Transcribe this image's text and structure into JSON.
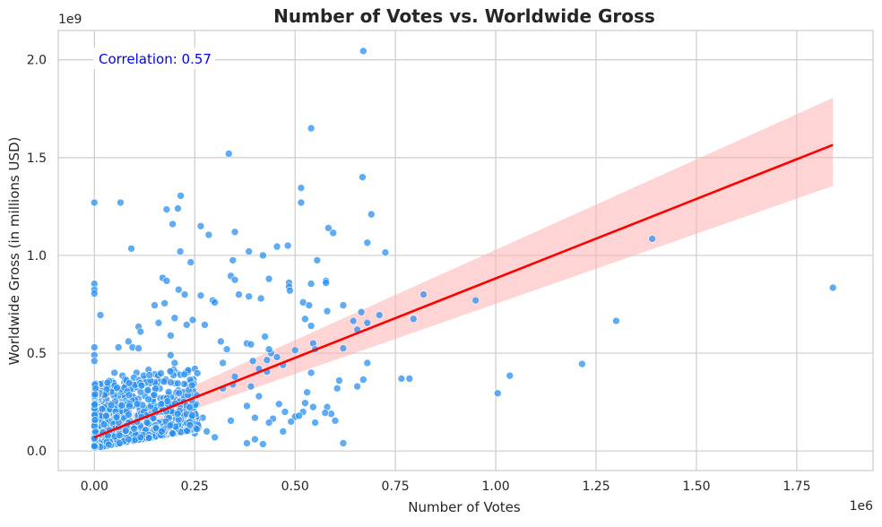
{
  "chart_data": {
    "type": "scatter",
    "title": "Number of Votes vs. Worldwide Gross",
    "xlabel": "Number of Votes",
    "ylabel": "Worldwide Gross (in millions USD)",
    "x_offset_label": "1e6",
    "y_offset_label": "1e9",
    "xlim": [
      -90000,
      1940000
    ],
    "ylim": [
      -100000000,
      2150000000
    ],
    "x_ticks": [
      {
        "value": 0,
        "label": "0.00"
      },
      {
        "value": 250000,
        "label": "0.25"
      },
      {
        "value": 500000,
        "label": "0.50"
      },
      {
        "value": 750000,
        "label": "0.75"
      },
      {
        "value": 1000000,
        "label": "1.00"
      },
      {
        "value": 1250000,
        "label": "1.25"
      },
      {
        "value": 1500000,
        "label": "1.50"
      },
      {
        "value": 1750000,
        "label": "1.75"
      }
    ],
    "y_ticks": [
      {
        "value": 0,
        "label": "0.0"
      },
      {
        "value": 500000000,
        "label": "0.5"
      },
      {
        "value": 1000000000,
        "label": "1.0"
      },
      {
        "value": 1500000000,
        "label": "1.5"
      },
      {
        "value": 2000000000,
        "label": "2.0"
      }
    ],
    "grid": true,
    "annotation": "Correlation: 0.57",
    "regression": {
      "x": [
        0,
        1840000
      ],
      "y": [
        70000000,
        1565000000
      ],
      "ci_upper_end": 1805000000,
      "ci_lower_end": 1355000000,
      "ci_at_zero": [
        35000000,
        105000000
      ]
    },
    "series": [
      {
        "points": [
          [
            670000,
            2045000000
          ],
          [
            540000,
            1650000000
          ],
          [
            335000,
            1520000000
          ],
          [
            668000,
            1400000000
          ],
          [
            515000,
            1345000000
          ],
          [
            0,
            1270000000
          ],
          [
            65000,
            1270000000
          ],
          [
            515000,
            1270000000
          ],
          [
            215000,
            1305000000
          ],
          [
            180000,
            1235000000
          ],
          [
            208000,
            1240000000
          ],
          [
            265000,
            1150000000
          ],
          [
            285000,
            1105000000
          ],
          [
            595000,
            1115000000
          ],
          [
            583000,
            1140000000
          ],
          [
            350000,
            1120000000
          ],
          [
            690000,
            1210000000
          ],
          [
            195000,
            1160000000
          ],
          [
            92000,
            1035000000
          ],
          [
            214000,
            1020000000
          ],
          [
            345000,
            975000000
          ],
          [
            385000,
            1020000000
          ],
          [
            455000,
            1045000000
          ],
          [
            482000,
            1050000000
          ],
          [
            680000,
            1065000000
          ],
          [
            725000,
            1015000000
          ],
          [
            240000,
            965000000
          ],
          [
            420000,
            1000000000
          ],
          [
            555000,
            975000000
          ],
          [
            0,
            855000000
          ],
          [
            0,
            825000000
          ],
          [
            0,
            805000000
          ],
          [
            170000,
            885000000
          ],
          [
            180000,
            870000000
          ],
          [
            340000,
            895000000
          ],
          [
            350000,
            875000000
          ],
          [
            435000,
            880000000
          ],
          [
            485000,
            860000000
          ],
          [
            485000,
            840000000
          ],
          [
            487000,
            820000000
          ],
          [
            577000,
            870000000
          ],
          [
            577000,
            860000000
          ],
          [
            540000,
            855000000
          ],
          [
            210000,
            825000000
          ],
          [
            265000,
            795000000
          ],
          [
            295000,
            770000000
          ],
          [
            300000,
            760000000
          ],
          [
            225000,
            800000000
          ],
          [
            360000,
            800000000
          ],
          [
            385000,
            790000000
          ],
          [
            415000,
            780000000
          ],
          [
            520000,
            760000000
          ],
          [
            535000,
            745000000
          ],
          [
            620000,
            745000000
          ],
          [
            820000,
            800000000
          ],
          [
            950000,
            770000000
          ],
          [
            1390000,
            1085000000
          ],
          [
            1840000,
            835000000
          ],
          [
            1300000,
            665000000
          ],
          [
            1215000,
            445000000
          ],
          [
            1035000,
            385000000
          ],
          [
            1005000,
            295000000
          ],
          [
            785000,
            370000000
          ],
          [
            765000,
            370000000
          ],
          [
            795000,
            675000000
          ],
          [
            710000,
            695000000
          ],
          [
            680000,
            655000000
          ],
          [
            655000,
            620000000
          ],
          [
            645000,
            665000000
          ],
          [
            665000,
            710000000
          ],
          [
            580000,
            715000000
          ],
          [
            525000,
            675000000
          ],
          [
            540000,
            640000000
          ],
          [
            545000,
            550000000
          ],
          [
            620000,
            525000000
          ],
          [
            550000,
            520000000
          ],
          [
            500000,
            515000000
          ],
          [
            440000,
            500000000
          ],
          [
            455000,
            480000000
          ],
          [
            430000,
            465000000
          ],
          [
            430000,
            405000000
          ],
          [
            470000,
            440000000
          ],
          [
            410000,
            420000000
          ],
          [
            395000,
            460000000
          ],
          [
            380000,
            550000000
          ],
          [
            390000,
            545000000
          ],
          [
            425000,
            585000000
          ],
          [
            435000,
            520000000
          ],
          [
            680000,
            450000000
          ],
          [
            670000,
            365000000
          ],
          [
            655000,
            330000000
          ],
          [
            610000,
            360000000
          ],
          [
            605000,
            320000000
          ],
          [
            540000,
            400000000
          ],
          [
            530000,
            300000000
          ],
          [
            525000,
            245000000
          ],
          [
            520000,
            200000000
          ],
          [
            545000,
            225000000
          ],
          [
            580000,
            225000000
          ],
          [
            590000,
            190000000
          ],
          [
            575000,
            195000000
          ],
          [
            500000,
            175000000
          ],
          [
            490000,
            150000000
          ],
          [
            475000,
            200000000
          ],
          [
            460000,
            240000000
          ],
          [
            445000,
            165000000
          ],
          [
            470000,
            100000000
          ],
          [
            435000,
            145000000
          ],
          [
            400000,
            170000000
          ],
          [
            380000,
            230000000
          ],
          [
            410000,
            280000000
          ],
          [
            390000,
            330000000
          ],
          [
            350000,
            380000000
          ],
          [
            345000,
            340000000
          ],
          [
            320000,
            320000000
          ],
          [
            320000,
            450000000
          ],
          [
            330000,
            520000000
          ],
          [
            315000,
            560000000
          ],
          [
            275000,
            645000000
          ],
          [
            245000,
            670000000
          ],
          [
            230000,
            645000000
          ],
          [
            200000,
            680000000
          ],
          [
            190000,
            590000000
          ],
          [
            160000,
            655000000
          ],
          [
            150000,
            745000000
          ],
          [
            175000,
            755000000
          ],
          [
            110000,
            635000000
          ],
          [
            115000,
            610000000
          ],
          [
            85000,
            560000000
          ],
          [
            95000,
            530000000
          ],
          [
            110000,
            525000000
          ],
          [
            60000,
            530000000
          ],
          [
            15000,
            695000000
          ],
          [
            0,
            530000000
          ],
          [
            0,
            490000000
          ],
          [
            0,
            460000000
          ],
          [
            190000,
            490000000
          ],
          [
            200000,
            450000000
          ],
          [
            135000,
            415000000
          ],
          [
            105000,
            400000000
          ],
          [
            50000,
            400000000
          ],
          [
            70000,
            385000000
          ],
          [
            45000,
            355000000
          ],
          [
            20000,
            345000000
          ],
          [
            620000,
            40000000
          ],
          [
            400000,
            60000000
          ],
          [
            420000,
            35000000
          ],
          [
            380000,
            40000000
          ],
          [
            300000,
            70000000
          ],
          [
            280000,
            100000000
          ],
          [
            250000,
            90000000
          ],
          [
            600000,
            155000000
          ],
          [
            550000,
            145000000
          ],
          [
            510000,
            180000000
          ],
          [
            270000,
            170000000
          ],
          [
            340000,
            155000000
          ]
        ]
      }
    ]
  },
  "colors": {
    "points": "#2b90f0",
    "points_stroke": "#ffffff",
    "line": "#ff0000",
    "ci_band": "#ffb0b0",
    "grid": "#cccccc",
    "frame": "#cccccc",
    "text": "#262626",
    "annotation": "#0000ff"
  }
}
